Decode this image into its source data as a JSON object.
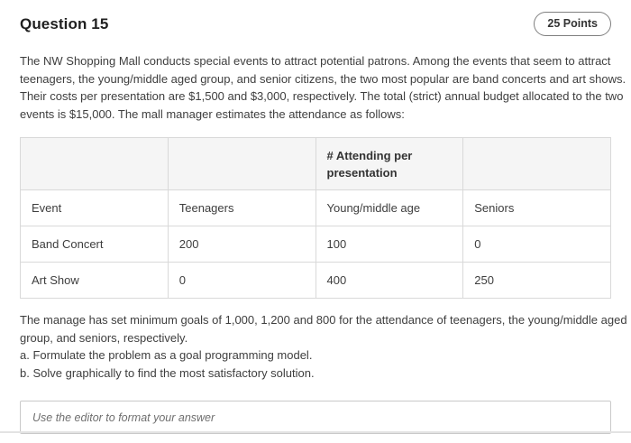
{
  "header": {
    "title": "Question 15",
    "points_badge": "25 Points"
  },
  "intro_lines": [
    "The NW Shopping Mall conducts special events to attract potential patrons. Among the events that seem to attract",
    "teenagers, the young/middle aged group, and senior citizens, the two most popular are band concerts and art shows.",
    "Their costs per presentation are $1,500 and $3,000, respectively. The total (strict) annual budget allocated to the two",
    "events is $15,000. The mall manager estimates the attendance as follows:"
  ],
  "table": {
    "attending_header": "# Attending per presentation",
    "rows": [
      [
        "Event",
        "Teenagers",
        "Young/middle age",
        "Seniors"
      ],
      [
        "Band Concert",
        "200",
        "100",
        "0"
      ],
      [
        "Art Show",
        "0",
        "400",
        "250"
      ]
    ]
  },
  "goals_lines": [
    "The manage has set minimum goals of 1,000, 1,200 and 800 for the attendance of teenagers, the young/middle aged",
    "group, and seniors, respectively.",
    "a. Formulate the problem as a goal programming model.",
    "b. Solve graphically to find the most satisfactory solution."
  ],
  "answer": {
    "placeholder": "Use the editor to format your answer"
  },
  "colors": {
    "text": "#3e3e3e",
    "table_border": "#d9d9d9",
    "table_header_bg": "#f5f5f5",
    "pill_border": "#7f7f7f",
    "divider": "#e3e3e3"
  }
}
